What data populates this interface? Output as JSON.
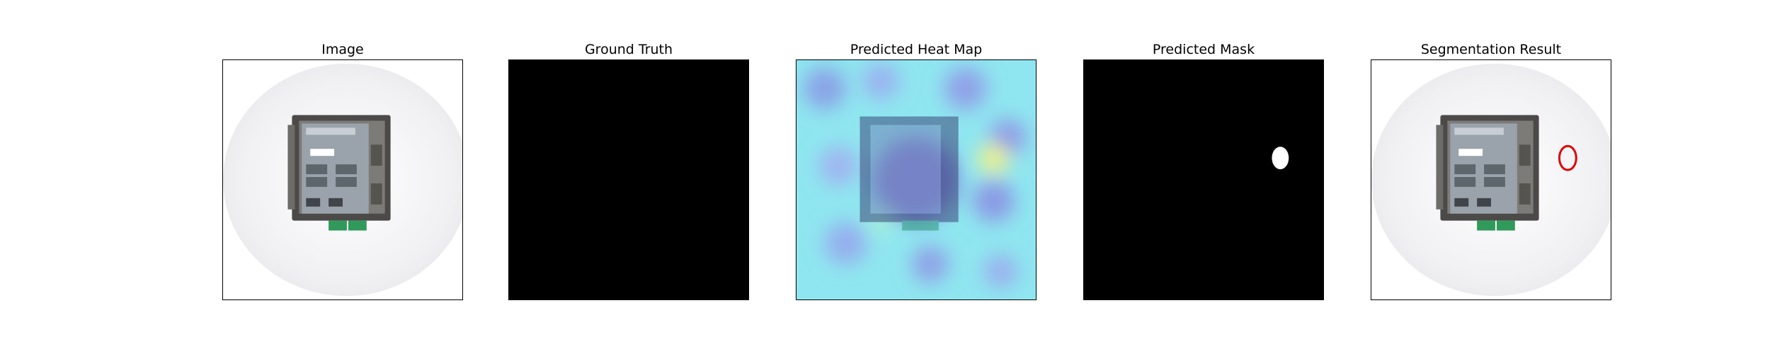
{
  "figure": {
    "panels": [
      {
        "id": "image",
        "title": "Image"
      },
      {
        "id": "ground-truth",
        "title": "Ground Truth"
      },
      {
        "id": "heatmap",
        "title": "Predicted Heat Map"
      },
      {
        "id": "mask",
        "title": "Predicted Mask"
      },
      {
        "id": "segmentation",
        "title": "Segmentation Result"
      }
    ],
    "colors": {
      "background": "#ffffff",
      "mask_fill": "#000000",
      "mask_region": "#ffffff",
      "contour": "#e00000",
      "heatmap_low": "#7fe7f2",
      "heatmap_high": "#f4f27a"
    }
  }
}
